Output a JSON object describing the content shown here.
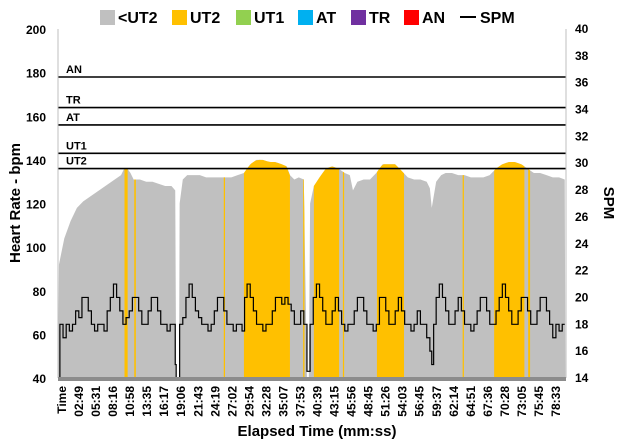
{
  "chart_data": {
    "type": "area",
    "title": "",
    "xlabel": "Elapsed Time (mm:ss)",
    "ylabel": "Heart Rate - bpm",
    "y2label": "SPM",
    "ylim": [
      40,
      200
    ],
    "y2lim": [
      14,
      40
    ],
    "yticks": [
      40,
      60,
      80,
      100,
      120,
      140,
      160,
      180,
      200
    ],
    "y2ticks": [
      14,
      16,
      18,
      20,
      22,
      24,
      26,
      28,
      30,
      32,
      34,
      36,
      38,
      40
    ],
    "x_unit": "minutes",
    "xlim": [
      0,
      80.6
    ],
    "x_tick_labels": [
      "Time",
      "02:49",
      "05:31",
      "08:16",
      "10:58",
      "13:35",
      "16:17",
      "19:06",
      "21:43",
      "24:19",
      "27:02",
      "29:54",
      "32:28",
      "35:07",
      "37:53",
      "40:39",
      "43:15",
      "45:56",
      "48:45",
      "51:26",
      "54:03",
      "56:45",
      "59:37",
      "62:14",
      "64:51",
      "67:36",
      "70:28",
      "73:05",
      "75:45",
      "78:33"
    ],
    "legend": [
      {
        "name": "<UT2",
        "color": "#c0c0c0",
        "kind": "swatch"
      },
      {
        "name": "UT2",
        "color": "#ffc000",
        "kind": "swatch"
      },
      {
        "name": "UT1",
        "color": "#92d050",
        "kind": "swatch"
      },
      {
        "name": "AT",
        "color": "#00b0f0",
        "kind": "swatch"
      },
      {
        "name": "TR",
        "color": "#7030a0",
        "kind": "swatch"
      },
      {
        "name": "AN",
        "color": "#ff0000",
        "kind": "swatch"
      },
      {
        "name": "SPM",
        "color": "#000000",
        "kind": "line"
      }
    ],
    "zones": [
      {
        "name": "UT2",
        "lower_bpm": 136
      },
      {
        "name": "UT1",
        "lower_bpm": 143
      },
      {
        "name": "AT",
        "lower_bpm": 156
      },
      {
        "name": "TR",
        "lower_bpm": 164
      },
      {
        "name": "AN",
        "lower_bpm": 178
      }
    ],
    "heart_rate_profile": [
      [
        0,
        40
      ],
      [
        0.15,
        92
      ],
      [
        1,
        104
      ],
      [
        2,
        112
      ],
      [
        3,
        118
      ],
      [
        4,
        121
      ],
      [
        5,
        123
      ],
      [
        6,
        125
      ],
      [
        7,
        127
      ],
      [
        8,
        129
      ],
      [
        9,
        131
      ],
      [
        10,
        133
      ],
      [
        10.5,
        136
      ],
      [
        11,
        136
      ],
      [
        11.5,
        134
      ],
      [
        12,
        131
      ],
      [
        13,
        131
      ],
      [
        14,
        130
      ],
      [
        15,
        130
      ],
      [
        16,
        129
      ],
      [
        17,
        128
      ],
      [
        18,
        128
      ],
      [
        18.6,
        126
      ],
      [
        18.75,
        40
      ],
      [
        19.2,
        40
      ],
      [
        19.3,
        120
      ],
      [
        19.8,
        131
      ],
      [
        20.5,
        133
      ],
      [
        21.5,
        133
      ],
      [
        22.5,
        133
      ],
      [
        23.5,
        132
      ],
      [
        24.5,
        132
      ],
      [
        25.5,
        132
      ],
      [
        26.5,
        132
      ],
      [
        27.5,
        132
      ],
      [
        28.5,
        133
      ],
      [
        29.5,
        134
      ],
      [
        30.5,
        138
      ],
      [
        31.5,
        140
      ],
      [
        32.5,
        140
      ],
      [
        33.5,
        139
      ],
      [
        34.5,
        139
      ],
      [
        35.5,
        138
      ],
      [
        36.3,
        137
      ],
      [
        36.8,
        133
      ],
      [
        37.5,
        131
      ],
      [
        38.2,
        132
      ],
      [
        39.0,
        131
      ],
      [
        39.5,
        40
      ],
      [
        39.8,
        40
      ],
      [
        40.0,
        120
      ],
      [
        40.6,
        128
      ],
      [
        41.5,
        132
      ],
      [
        42.5,
        136
      ],
      [
        43.5,
        137
      ],
      [
        44.5,
        136
      ],
      [
        45.5,
        134
      ],
      [
        46.3,
        133
      ],
      [
        46.8,
        126
      ],
      [
        47.5,
        130
      ],
      [
        48.5,
        131
      ],
      [
        49.5,
        131
      ],
      [
        50.5,
        134
      ],
      [
        51.5,
        138
      ],
      [
        52.5,
        138
      ],
      [
        53.5,
        138
      ],
      [
        54.5,
        135
      ],
      [
        55.5,
        132
      ],
      [
        56.5,
        131
      ],
      [
        57.5,
        131
      ],
      [
        58.5,
        130
      ],
      [
        59.0,
        127
      ],
      [
        59.3,
        118
      ],
      [
        60.0,
        130
      ],
      [
        60.8,
        133
      ],
      [
        61.5,
        134
      ],
      [
        62.5,
        134
      ],
      [
        63.5,
        133
      ],
      [
        64.5,
        133
      ],
      [
        65.5,
        132
      ],
      [
        66.5,
        132
      ],
      [
        67.5,
        132
      ],
      [
        68.5,
        133
      ],
      [
        69.5,
        136
      ],
      [
        70.5,
        138
      ],
      [
        71.5,
        139
      ],
      [
        72.5,
        139
      ],
      [
        73.5,
        138
      ],
      [
        74.5,
        136
      ],
      [
        75.5,
        134
      ],
      [
        76.5,
        134
      ],
      [
        77.5,
        133
      ],
      [
        78.5,
        132
      ],
      [
        79.5,
        132
      ],
      [
        80.4,
        131
      ],
      [
        80.5,
        40
      ]
    ],
    "ut2_intervals": [
      [
        10.55,
        11.05
      ],
      [
        12.1,
        12.35
      ],
      [
        26.3,
        26.5
      ],
      [
        29.5,
        36.8
      ],
      [
        38.9,
        39.1
      ],
      [
        40.6,
        44.6
      ],
      [
        45.2,
        45.4
      ],
      [
        50.6,
        54.9
      ],
      [
        64.2,
        64.4
      ],
      [
        69.2,
        74.0
      ],
      [
        74.6,
        74.9
      ]
    ],
    "ut1_intervals": [],
    "at_intervals": [],
    "tr_intervals": [],
    "an_intervals": [],
    "spm_profile": [
      [
        0.0,
        14
      ],
      [
        0.3,
        18
      ],
      [
        0.8,
        17
      ],
      [
        1.3,
        18
      ],
      [
        1.8,
        17.5
      ],
      [
        2.3,
        18
      ],
      [
        2.8,
        19
      ],
      [
        3.3,
        18.5
      ],
      [
        3.8,
        20
      ],
      [
        4.3,
        20
      ],
      [
        4.8,
        19
      ],
      [
        5.3,
        18
      ],
      [
        5.8,
        17.5
      ],
      [
        6.3,
        18
      ],
      [
        6.8,
        18
      ],
      [
        7.3,
        17.5
      ],
      [
        7.8,
        19
      ],
      [
        8.3,
        20
      ],
      [
        8.8,
        21
      ],
      [
        9.3,
        20
      ],
      [
        9.8,
        19
      ],
      [
        10.3,
        18
      ],
      [
        10.8,
        18.5
      ],
      [
        11.3,
        19
      ],
      [
        11.8,
        20
      ],
      [
        12.3,
        20
      ],
      [
        12.8,
        19
      ],
      [
        13.3,
        18
      ],
      [
        13.8,
        18
      ],
      [
        14.3,
        19
      ],
      [
        14.8,
        20
      ],
      [
        15.3,
        20
      ],
      [
        15.8,
        19
      ],
      [
        16.3,
        18
      ],
      [
        16.8,
        18
      ],
      [
        17.3,
        17.5
      ],
      [
        17.8,
        18
      ],
      [
        18.3,
        18
      ],
      [
        18.6,
        15
      ],
      [
        18.75,
        14
      ],
      [
        19.2,
        14
      ],
      [
        19.3,
        18
      ],
      [
        19.8,
        18.5
      ],
      [
        20.3,
        20
      ],
      [
        20.8,
        21
      ],
      [
        21.3,
        20
      ],
      [
        21.8,
        19
      ],
      [
        22.3,
        18.5
      ],
      [
        22.8,
        18
      ],
      [
        23.3,
        18
      ],
      [
        23.8,
        17.5
      ],
      [
        24.3,
        18
      ],
      [
        24.8,
        19
      ],
      [
        25.3,
        20
      ],
      [
        25.8,
        20
      ],
      [
        26.3,
        19
      ],
      [
        26.8,
        18
      ],
      [
        27.3,
        18
      ],
      [
        27.8,
        17.5
      ],
      [
        28.3,
        18
      ],
      [
        28.8,
        18
      ],
      [
        29.2,
        17.5
      ],
      [
        29.6,
        20
      ],
      [
        30.0,
        21
      ],
      [
        30.5,
        20
      ],
      [
        31.0,
        19
      ],
      [
        31.5,
        18
      ],
      [
        32.0,
        18
      ],
      [
        32.5,
        17.5
      ],
      [
        33.0,
        18
      ],
      [
        33.5,
        18
      ],
      [
        34.0,
        19
      ],
      [
        34.5,
        20
      ],
      [
        35.0,
        20
      ],
      [
        35.5,
        19.5
      ],
      [
        36.0,
        20
      ],
      [
        36.5,
        19.5
      ],
      [
        37.0,
        19
      ],
      [
        37.5,
        18
      ],
      [
        38.0,
        18
      ],
      [
        38.5,
        19
      ],
      [
        39.0,
        18
      ],
      [
        39.5,
        14.5
      ],
      [
        39.8,
        14.5
      ],
      [
        40.0,
        18
      ],
      [
        40.5,
        20
      ],
      [
        41.0,
        21
      ],
      [
        41.5,
        20
      ],
      [
        42.0,
        19
      ],
      [
        42.5,
        18
      ],
      [
        43.0,
        18
      ],
      [
        43.5,
        19
      ],
      [
        44.0,
        20
      ],
      [
        44.5,
        19
      ],
      [
        45.0,
        18
      ],
      [
        45.5,
        17.5
      ],
      [
        46.0,
        18
      ],
      [
        46.5,
        18
      ],
      [
        47.0,
        19
      ],
      [
        47.5,
        20
      ],
      [
        48.0,
        20
      ],
      [
        48.5,
        19
      ],
      [
        49.0,
        18
      ],
      [
        49.5,
        18
      ],
      [
        50.0,
        17.5
      ],
      [
        50.5,
        18
      ],
      [
        51.0,
        20
      ],
      [
        51.5,
        20
      ],
      [
        52.0,
        19
      ],
      [
        52.5,
        18
      ],
      [
        53.0,
        18
      ],
      [
        53.5,
        19
      ],
      [
        54.0,
        20
      ],
      [
        54.5,
        19
      ],
      [
        55.0,
        18
      ],
      [
        55.5,
        18
      ],
      [
        56.0,
        17.5
      ],
      [
        56.5,
        18
      ],
      [
        57.0,
        19
      ],
      [
        57.5,
        18
      ],
      [
        58.0,
        18
      ],
      [
        58.5,
        17
      ],
      [
        59.0,
        16
      ],
      [
        59.3,
        15
      ],
      [
        59.6,
        18
      ],
      [
        60.0,
        20
      ],
      [
        60.5,
        21
      ],
      [
        61.0,
        20
      ],
      [
        61.5,
        19
      ],
      [
        62.0,
        18
      ],
      [
        62.5,
        18
      ],
      [
        63.0,
        19
      ],
      [
        63.5,
        20
      ],
      [
        64.0,
        19
      ],
      [
        64.5,
        18
      ],
      [
        65.0,
        18
      ],
      [
        65.5,
        17.5
      ],
      [
        66.0,
        18
      ],
      [
        66.5,
        19
      ],
      [
        67.0,
        20
      ],
      [
        67.5,
        20
      ],
      [
        68.0,
        19
      ],
      [
        68.5,
        18
      ],
      [
        69.0,
        18
      ],
      [
        69.5,
        19
      ],
      [
        70.0,
        20
      ],
      [
        70.5,
        21
      ],
      [
        71.0,
        20
      ],
      [
        71.5,
        19
      ],
      [
        72.0,
        18
      ],
      [
        72.5,
        18
      ],
      [
        73.0,
        19
      ],
      [
        73.5,
        20
      ],
      [
        74.0,
        20
      ],
      [
        74.5,
        19
      ],
      [
        75.0,
        18
      ],
      [
        75.5,
        18
      ],
      [
        76.0,
        19
      ],
      [
        76.5,
        20
      ],
      [
        77.0,
        20
      ],
      [
        77.5,
        19
      ],
      [
        78.0,
        18
      ],
      [
        78.5,
        17
      ],
      [
        79.0,
        18
      ],
      [
        79.5,
        17.5
      ],
      [
        80.0,
        18
      ],
      [
        80.4,
        18
      ]
    ]
  }
}
